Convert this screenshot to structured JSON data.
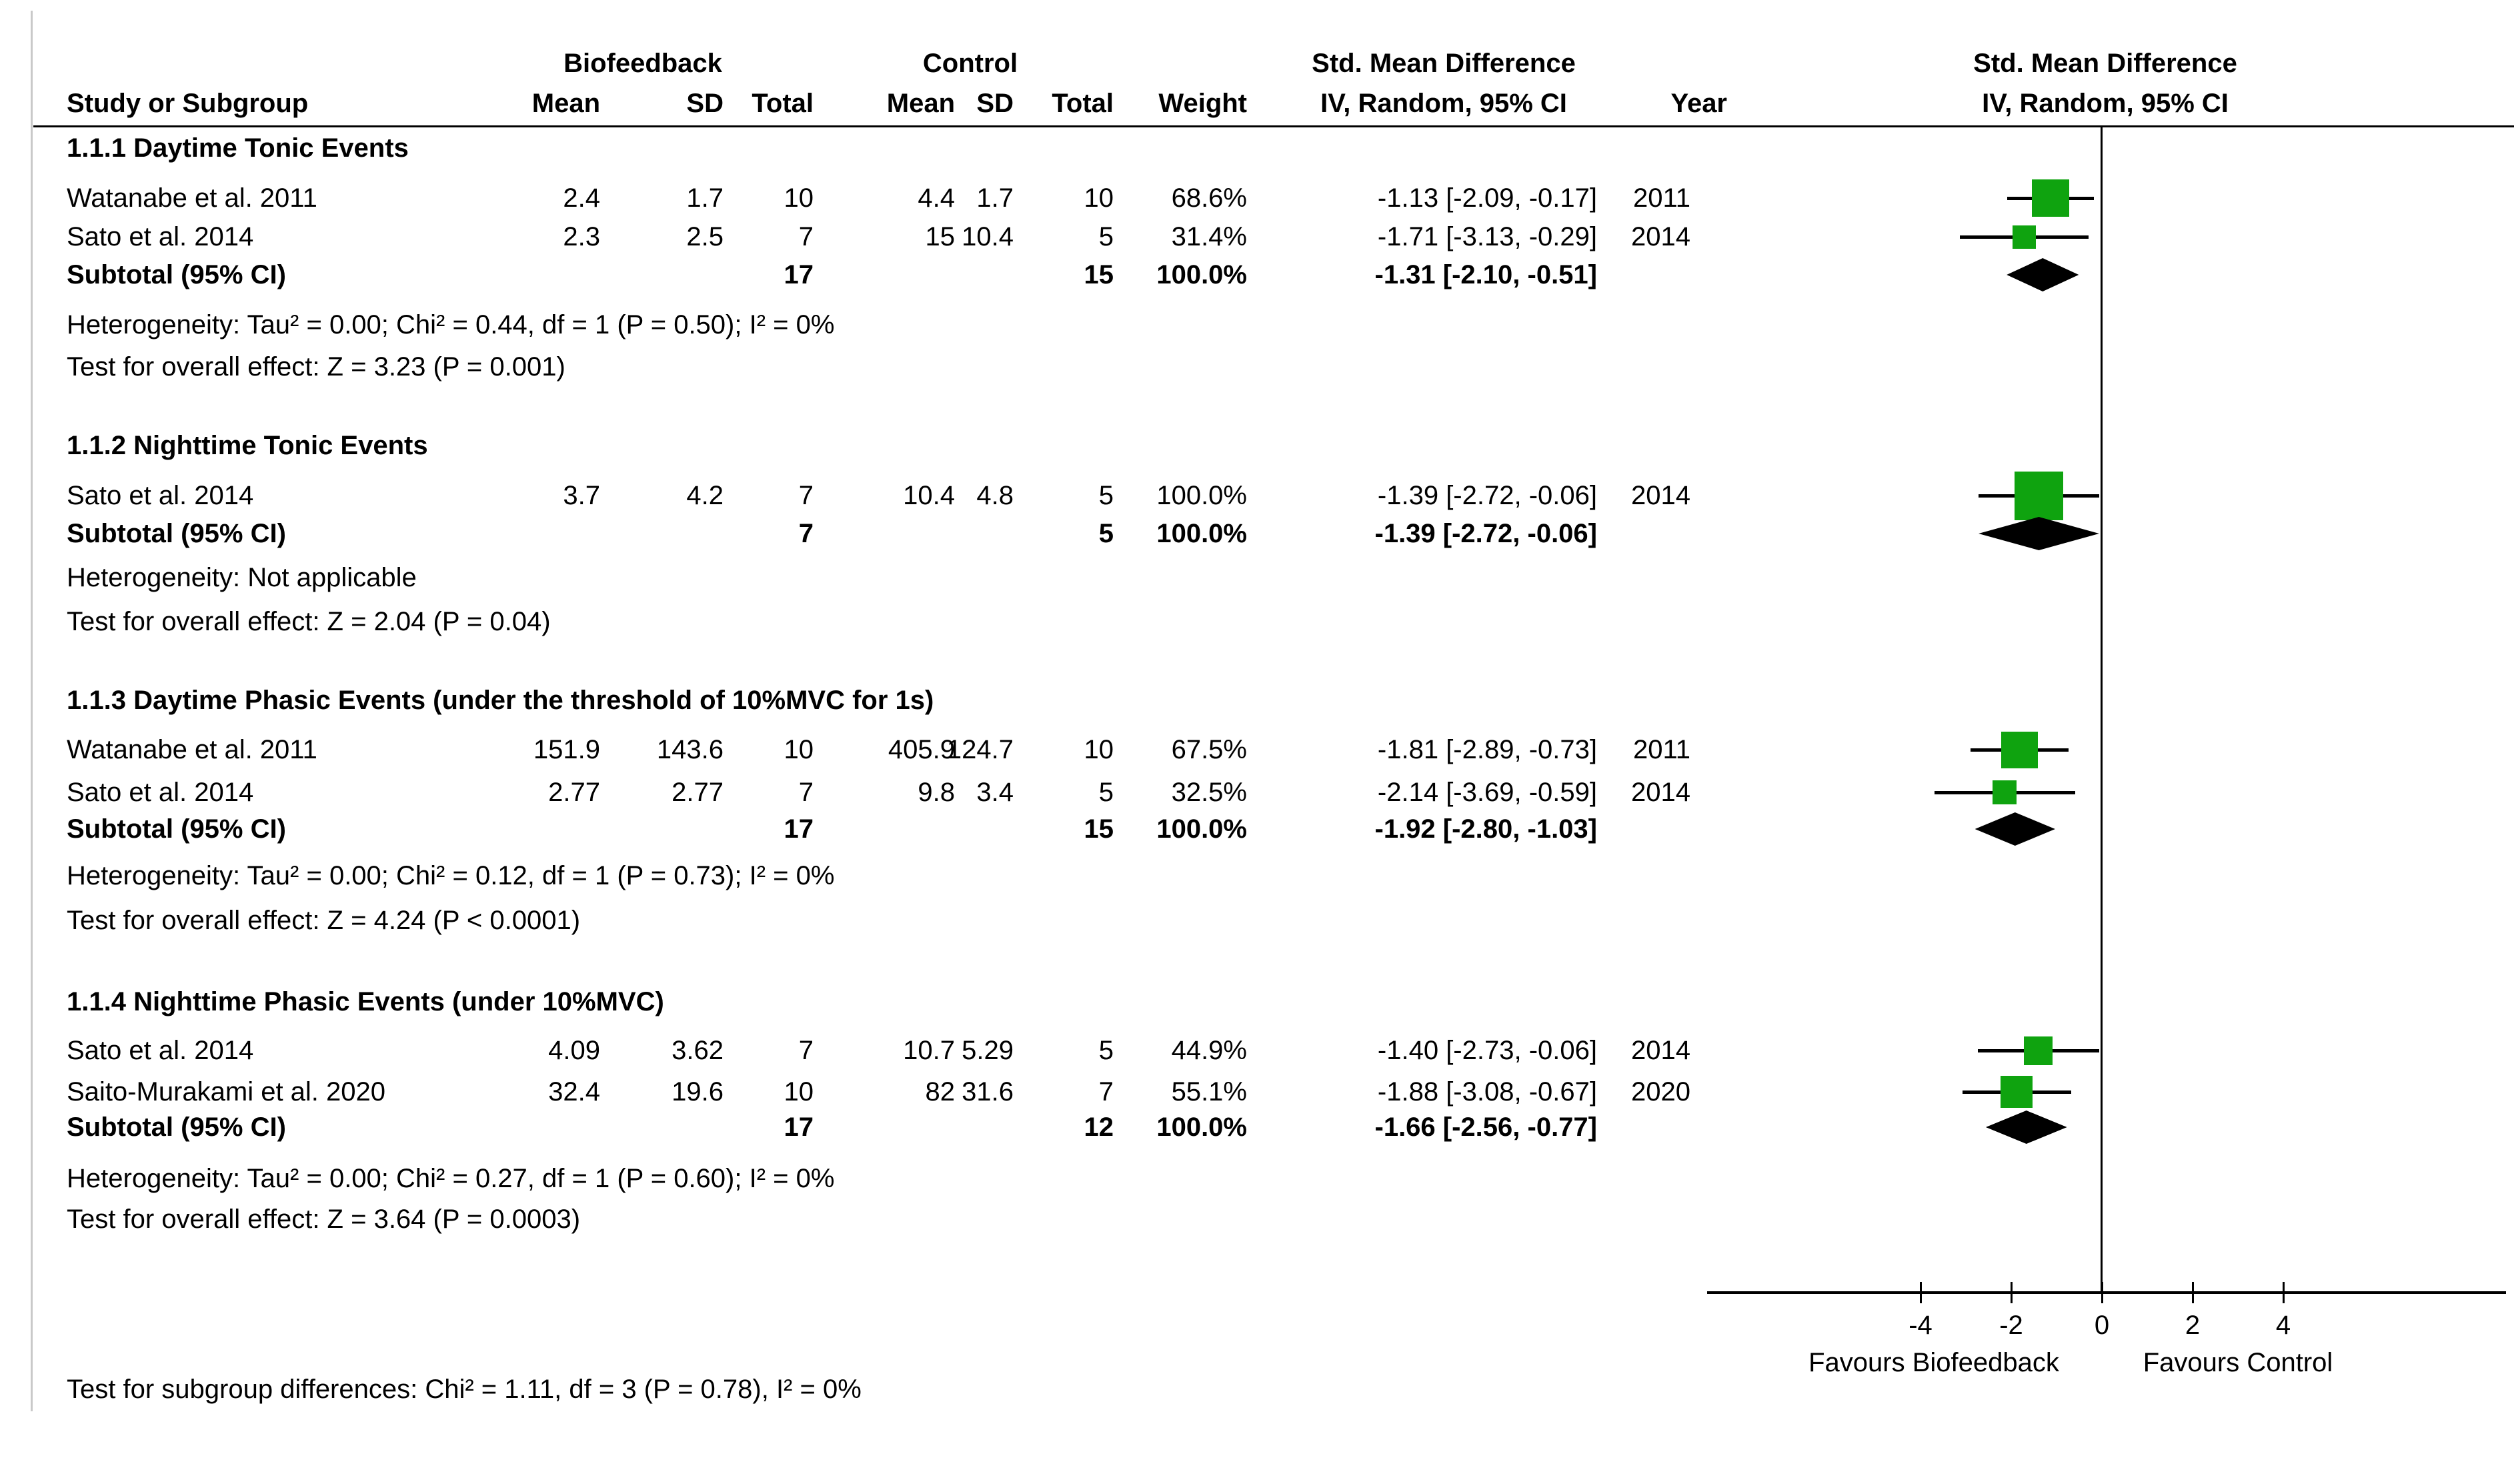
{
  "header": {
    "group1": "Biofeedback",
    "group2": "Control",
    "effect": "Std. Mean Difference",
    "effect_method": "IV, Random, 95% CI",
    "study": "Study or Subgroup",
    "mean": "Mean",
    "sd": "SD",
    "total": "Total",
    "weight": "Weight",
    "year": "Year"
  },
  "plot": {
    "ticks": [
      "-4",
      "-2",
      "0",
      "2",
      "4"
    ],
    "tick_values": [
      -4,
      -2,
      0,
      2,
      4
    ],
    "favours_left": "Favours Biofeedback",
    "favours_right": "Favours Control",
    "marker_color": "#0FA30F",
    "diamond_color": "#000000"
  },
  "sections": [
    {
      "title": "1.1.1 Daytime Tonic Events",
      "studies": [
        {
          "study": "Watanabe et al. 2011",
          "mean1": "2.4",
          "sd1": "1.7",
          "total1": "10",
          "mean2": "4.4",
          "sd2": "1.7",
          "total2": "10",
          "weight": "68.6%",
          "weight_pct": 68.6,
          "ci": "-1.13 [-2.09, -0.17]",
          "year": "2011",
          "smd": -1.13,
          "lo": -2.09,
          "hi": -0.17
        },
        {
          "study": "Sato et al. 2014",
          "mean1": "2.3",
          "sd1": "2.5",
          "total1": "7",
          "mean2": "15",
          "sd2": "10.4",
          "total2": "5",
          "weight": "31.4%",
          "weight_pct": 31.4,
          "ci": "-1.71 [-3.13, -0.29]",
          "year": "2014",
          "smd": -1.71,
          "lo": -3.13,
          "hi": -0.29
        }
      ],
      "subtotal": {
        "label": "Subtotal (95% CI)",
        "total1": "17",
        "total2": "15",
        "weight": "100.0%",
        "ci": "-1.31 [-2.10, -0.51]",
        "smd": -1.31,
        "lo": -2.1,
        "hi": -0.51
      },
      "heterogeneity": "Heterogeneity: Tau² = 0.00; Chi² = 0.44, df = 1 (P = 0.50); I² = 0%",
      "test": "Test for overall effect: Z = 3.23 (P = 0.001)"
    },
    {
      "title": "1.1.2 Nighttime Tonic Events",
      "studies": [
        {
          "study": "Sato et al. 2014",
          "mean1": "3.7",
          "sd1": "4.2",
          "total1": "7",
          "mean2": "10.4",
          "sd2": "4.8",
          "total2": "5",
          "weight": "100.0%",
          "weight_pct": 100.0,
          "ci": "-1.39 [-2.72, -0.06]",
          "year": "2014",
          "smd": -1.39,
          "lo": -2.72,
          "hi": -0.06
        }
      ],
      "subtotal": {
        "label": "Subtotal (95% CI)",
        "total1": "7",
        "total2": "5",
        "weight": "100.0%",
        "ci": "-1.39 [-2.72, -0.06]",
        "smd": -1.39,
        "lo": -2.72,
        "hi": -0.06
      },
      "heterogeneity": "Heterogeneity: Not applicable",
      "test": "Test for overall effect: Z = 2.04 (P = 0.04)"
    },
    {
      "title": "1.1.3 Daytime Phasic Events (under the threshold of 10%MVC for 1s)",
      "studies": [
        {
          "study": "Watanabe et al. 2011",
          "mean1": "151.9",
          "sd1": "143.6",
          "total1": "10",
          "mean2": "405.9",
          "sd2": "124.7",
          "total2": "10",
          "weight": "67.5%",
          "weight_pct": 67.5,
          "ci": "-1.81 [-2.89, -0.73]",
          "year": "2011",
          "smd": -1.81,
          "lo": -2.89,
          "hi": -0.73
        },
        {
          "study": "Sato et al. 2014",
          "mean1": "2.77",
          "sd1": "2.77",
          "total1": "7",
          "mean2": "9.8",
          "sd2": "3.4",
          "total2": "5",
          "weight": "32.5%",
          "weight_pct": 32.5,
          "ci": "-2.14 [-3.69, -0.59]",
          "year": "2014",
          "smd": -2.14,
          "lo": -3.69,
          "hi": -0.59
        }
      ],
      "subtotal": {
        "label": "Subtotal (95% CI)",
        "total1": "17",
        "total2": "15",
        "weight": "100.0%",
        "ci": "-1.92 [-2.80, -1.03]",
        "smd": -1.92,
        "lo": -2.8,
        "hi": -1.03
      },
      "heterogeneity": "Heterogeneity: Tau² = 0.00; Chi² = 0.12, df = 1 (P = 0.73); I² = 0%",
      "test": "Test for overall effect: Z = 4.24 (P < 0.0001)"
    },
    {
      "title": "1.1.4 Nighttime Phasic Events (under 10%MVC)",
      "studies": [
        {
          "study": "Sato et al. 2014",
          "mean1": "4.09",
          "sd1": "3.62",
          "total1": "7",
          "mean2": "10.7",
          "sd2": "5.29",
          "total2": "5",
          "weight": "44.9%",
          "weight_pct": 44.9,
          "ci": "-1.40 [-2.73, -0.06]",
          "year": "2014",
          "smd": -1.4,
          "lo": -2.73,
          "hi": -0.06
        },
        {
          "study": "Saito-Murakami et al. 2020",
          "mean1": "32.4",
          "sd1": "19.6",
          "total1": "10",
          "mean2": "82",
          "sd2": "31.6",
          "total2": "7",
          "weight": "55.1%",
          "weight_pct": 55.1,
          "ci": "-1.88 [-3.08, -0.67]",
          "year": "2020",
          "smd": -1.88,
          "lo": -3.08,
          "hi": -0.67
        }
      ],
      "subtotal": {
        "label": "Subtotal (95% CI)",
        "total1": "17",
        "total2": "12",
        "weight": "100.0%",
        "ci": "-1.66 [-2.56, -0.77]",
        "smd": -1.66,
        "lo": -2.56,
        "hi": -0.77
      },
      "heterogeneity": "Heterogeneity: Tau² = 0.00; Chi² = 0.27, df = 1 (P = 0.60); I² = 0%",
      "test": "Test for overall effect: Z = 3.64 (P = 0.0003)"
    }
  ],
  "footer": {
    "subgroup_test": "Test for subgroup differences: Chi² = 1.11, df = 3 (P = 0.78), I² = 0%"
  },
  "chart_data": {
    "type": "forest",
    "title": "Std. Mean Difference, IV, Random, 95% CI",
    "xlabel_left": "Favours Biofeedback",
    "xlabel_right": "Favours Control",
    "x_ticks": [
      -4,
      -2,
      0,
      2,
      4
    ],
    "subgroups": [
      {
        "name": "1.1.1 Daytime Tonic Events",
        "points": [
          {
            "study": "Watanabe et al. 2011",
            "smd": -1.13,
            "ci": [
              -2.09,
              -0.17
            ],
            "weight_pct": 68.6
          },
          {
            "study": "Sato et al. 2014",
            "smd": -1.71,
            "ci": [
              -3.13,
              -0.29
            ],
            "weight_pct": 31.4
          }
        ],
        "diamond": {
          "smd": -1.31,
          "ci": [
            -2.1,
            -0.51
          ]
        }
      },
      {
        "name": "1.1.2 Nighttime Tonic Events",
        "points": [
          {
            "study": "Sato et al. 2014",
            "smd": -1.39,
            "ci": [
              -2.72,
              -0.06
            ],
            "weight_pct": 100.0
          }
        ],
        "diamond": {
          "smd": -1.39,
          "ci": [
            -2.72,
            -0.06
          ]
        }
      },
      {
        "name": "1.1.3 Daytime Phasic Events (under the threshold of 10%MVC for 1s)",
        "points": [
          {
            "study": "Watanabe et al. 2011",
            "smd": -1.81,
            "ci": [
              -2.89,
              -0.73
            ],
            "weight_pct": 67.5
          },
          {
            "study": "Sato et al. 2014",
            "smd": -2.14,
            "ci": [
              -3.69,
              -0.59
            ],
            "weight_pct": 32.5
          }
        ],
        "diamond": {
          "smd": -1.92,
          "ci": [
            -2.8,
            -1.03
          ]
        }
      },
      {
        "name": "1.1.4 Nighttime Phasic Events (under 10%MVC)",
        "points": [
          {
            "study": "Sato et al. 2014",
            "smd": -1.4,
            "ci": [
              -2.73,
              -0.06
            ],
            "weight_pct": 44.9
          },
          {
            "study": "Saito-Murakami et al. 2020",
            "smd": -1.88,
            "ci": [
              -3.08,
              -0.67
            ],
            "weight_pct": 55.1
          }
        ],
        "diamond": {
          "smd": -1.66,
          "ci": [
            -2.56,
            -0.77
          ]
        }
      }
    ]
  }
}
